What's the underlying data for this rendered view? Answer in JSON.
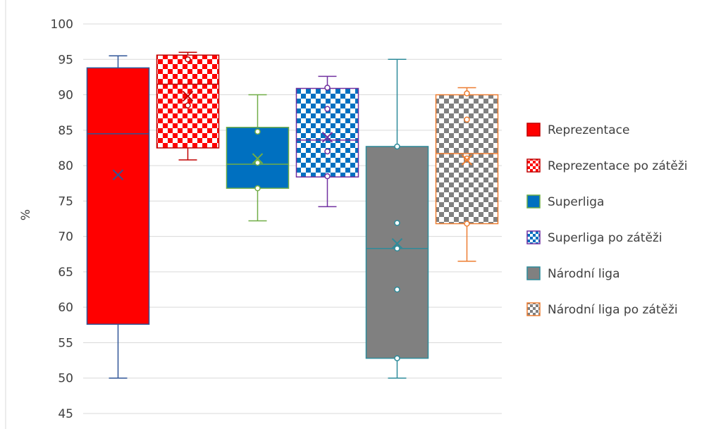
{
  "chart_data": {
    "type": "boxplot",
    "ylabel": "%",
    "ylim": [
      45,
      100
    ],
    "yticks": [
      45,
      50,
      55,
      60,
      65,
      70,
      75,
      80,
      85,
      90,
      95,
      100
    ],
    "grid": true,
    "legend_position": "right",
    "series": [
      {
        "name": "Reprezentace",
        "color": "#ff0000",
        "pattern": "solid",
        "min": 50.0,
        "q1": 57.6,
        "median": 84.5,
        "q3": 93.8,
        "max": 95.5,
        "mean": 78.7,
        "points": []
      },
      {
        "name": "Reprezentace po zátěži",
        "color": "#ff0000",
        "pattern": "checker",
        "min": 80.8,
        "q1": 82.5,
        "median": 91.5,
        "q3": 95.6,
        "max": 96.0,
        "mean": 89.8,
        "points": [
          95.0,
          88.5
        ]
      },
      {
        "name": "Superliga",
        "color": "#0070c0",
        "pattern": "solid",
        "stroke": "#70ad47",
        "min": 72.2,
        "q1": 76.8,
        "median": 80.2,
        "q3": 85.4,
        "max": 90.0,
        "mean": 81.0,
        "points": [
          84.8,
          80.4,
          76.8
        ]
      },
      {
        "name": "Superliga po zátěži",
        "color": "#0070c0",
        "pattern": "checker",
        "stroke": "#7030a0",
        "min": 74.2,
        "q1": 78.4,
        "median": 83.6,
        "q3": 90.9,
        "max": 92.6,
        "mean": 84.0,
        "points": [
          91.0,
          88.0,
          82.0,
          78.5
        ]
      },
      {
        "name": "Národní liga",
        "color": "#808080",
        "pattern": "solid",
        "stroke": "#2e8b9a",
        "min": 50.0,
        "q1": 52.8,
        "median": 68.3,
        "q3": 82.7,
        "max": 95.0,
        "mean": 69.0,
        "points": [
          82.7,
          71.9,
          68.3,
          62.5,
          52.8
        ]
      },
      {
        "name": "Národní liga po zátěži",
        "color": "#808080",
        "pattern": "checker",
        "stroke": "#ed7d31",
        "min": 66.5,
        "q1": 71.8,
        "median": 81.7,
        "q3": 90.0,
        "max": 91.0,
        "mean": 80.8,
        "points": [
          90.2,
          86.5,
          81.0,
          71.8
        ]
      }
    ]
  }
}
